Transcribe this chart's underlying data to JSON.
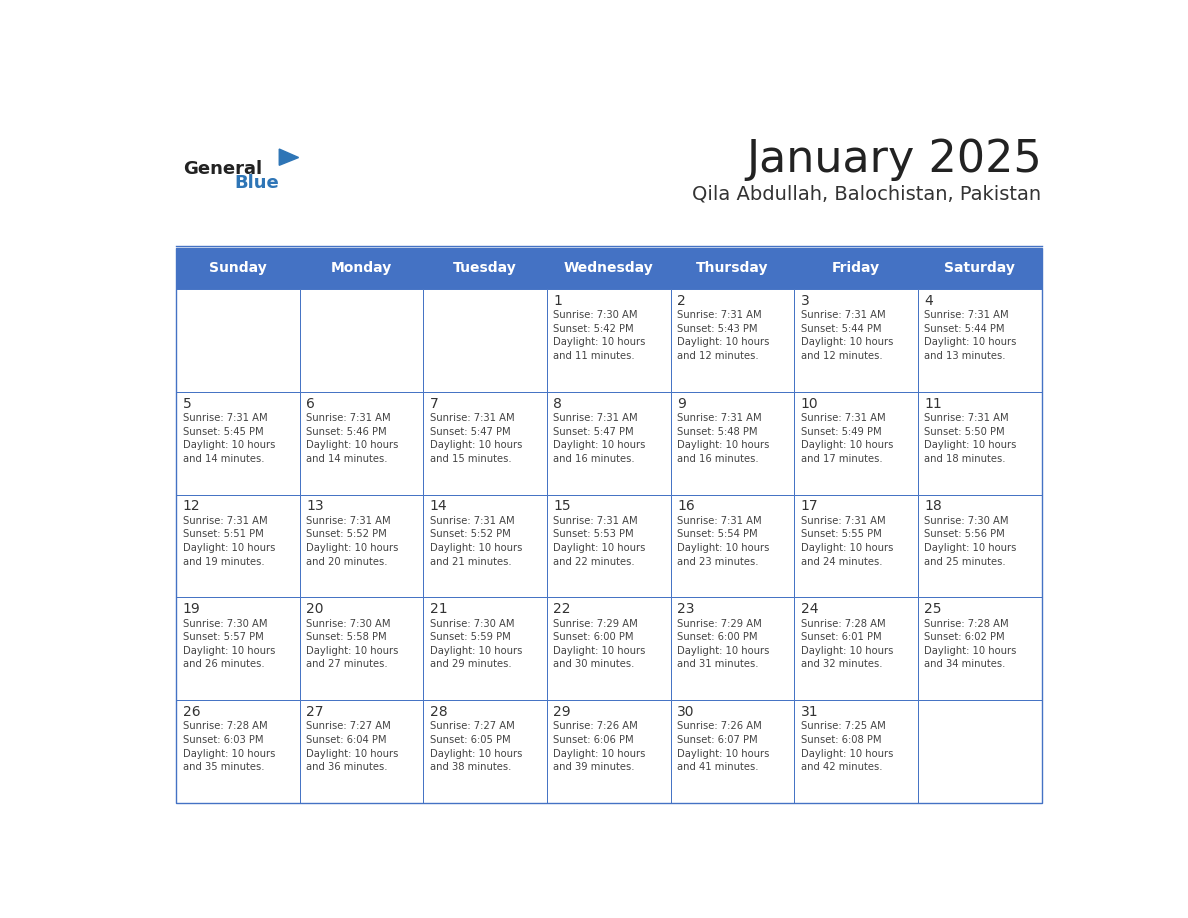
{
  "title": "January 2025",
  "subtitle": "Qila Abdullah, Balochistan, Pakistan",
  "header_bg_color": "#4472C4",
  "header_text_color": "#FFFFFF",
  "day_names": [
    "Sunday",
    "Monday",
    "Tuesday",
    "Wednesday",
    "Thursday",
    "Friday",
    "Saturday"
  ],
  "grid_line_color": "#4472C4",
  "cell_bg_color": "#FFFFFF",
  "day_number_color": "#333333",
  "day_text_color": "#444444",
  "title_color": "#222222",
  "subtitle_color": "#333333",
  "logo_general_color": "#222222",
  "logo_blue_color": "#2E75B6",
  "weeks": [
    {
      "days": [
        {
          "date": null,
          "info": null
        },
        {
          "date": null,
          "info": null
        },
        {
          "date": null,
          "info": null
        },
        {
          "date": 1,
          "info": "Sunrise: 7:30 AM\nSunset: 5:42 PM\nDaylight: 10 hours\nand 11 minutes."
        },
        {
          "date": 2,
          "info": "Sunrise: 7:31 AM\nSunset: 5:43 PM\nDaylight: 10 hours\nand 12 minutes."
        },
        {
          "date": 3,
          "info": "Sunrise: 7:31 AM\nSunset: 5:44 PM\nDaylight: 10 hours\nand 12 minutes."
        },
        {
          "date": 4,
          "info": "Sunrise: 7:31 AM\nSunset: 5:44 PM\nDaylight: 10 hours\nand 13 minutes."
        }
      ]
    },
    {
      "days": [
        {
          "date": 5,
          "info": "Sunrise: 7:31 AM\nSunset: 5:45 PM\nDaylight: 10 hours\nand 14 minutes."
        },
        {
          "date": 6,
          "info": "Sunrise: 7:31 AM\nSunset: 5:46 PM\nDaylight: 10 hours\nand 14 minutes."
        },
        {
          "date": 7,
          "info": "Sunrise: 7:31 AM\nSunset: 5:47 PM\nDaylight: 10 hours\nand 15 minutes."
        },
        {
          "date": 8,
          "info": "Sunrise: 7:31 AM\nSunset: 5:47 PM\nDaylight: 10 hours\nand 16 minutes."
        },
        {
          "date": 9,
          "info": "Sunrise: 7:31 AM\nSunset: 5:48 PM\nDaylight: 10 hours\nand 16 minutes."
        },
        {
          "date": 10,
          "info": "Sunrise: 7:31 AM\nSunset: 5:49 PM\nDaylight: 10 hours\nand 17 minutes."
        },
        {
          "date": 11,
          "info": "Sunrise: 7:31 AM\nSunset: 5:50 PM\nDaylight: 10 hours\nand 18 minutes."
        }
      ]
    },
    {
      "days": [
        {
          "date": 12,
          "info": "Sunrise: 7:31 AM\nSunset: 5:51 PM\nDaylight: 10 hours\nand 19 minutes."
        },
        {
          "date": 13,
          "info": "Sunrise: 7:31 AM\nSunset: 5:52 PM\nDaylight: 10 hours\nand 20 minutes."
        },
        {
          "date": 14,
          "info": "Sunrise: 7:31 AM\nSunset: 5:52 PM\nDaylight: 10 hours\nand 21 minutes."
        },
        {
          "date": 15,
          "info": "Sunrise: 7:31 AM\nSunset: 5:53 PM\nDaylight: 10 hours\nand 22 minutes."
        },
        {
          "date": 16,
          "info": "Sunrise: 7:31 AM\nSunset: 5:54 PM\nDaylight: 10 hours\nand 23 minutes."
        },
        {
          "date": 17,
          "info": "Sunrise: 7:31 AM\nSunset: 5:55 PM\nDaylight: 10 hours\nand 24 minutes."
        },
        {
          "date": 18,
          "info": "Sunrise: 7:30 AM\nSunset: 5:56 PM\nDaylight: 10 hours\nand 25 minutes."
        }
      ]
    },
    {
      "days": [
        {
          "date": 19,
          "info": "Sunrise: 7:30 AM\nSunset: 5:57 PM\nDaylight: 10 hours\nand 26 minutes."
        },
        {
          "date": 20,
          "info": "Sunrise: 7:30 AM\nSunset: 5:58 PM\nDaylight: 10 hours\nand 27 minutes."
        },
        {
          "date": 21,
          "info": "Sunrise: 7:30 AM\nSunset: 5:59 PM\nDaylight: 10 hours\nand 29 minutes."
        },
        {
          "date": 22,
          "info": "Sunrise: 7:29 AM\nSunset: 6:00 PM\nDaylight: 10 hours\nand 30 minutes."
        },
        {
          "date": 23,
          "info": "Sunrise: 7:29 AM\nSunset: 6:00 PM\nDaylight: 10 hours\nand 31 minutes."
        },
        {
          "date": 24,
          "info": "Sunrise: 7:28 AM\nSunset: 6:01 PM\nDaylight: 10 hours\nand 32 minutes."
        },
        {
          "date": 25,
          "info": "Sunrise: 7:28 AM\nSunset: 6:02 PM\nDaylight: 10 hours\nand 34 minutes."
        }
      ]
    },
    {
      "days": [
        {
          "date": 26,
          "info": "Sunrise: 7:28 AM\nSunset: 6:03 PM\nDaylight: 10 hours\nand 35 minutes."
        },
        {
          "date": 27,
          "info": "Sunrise: 7:27 AM\nSunset: 6:04 PM\nDaylight: 10 hours\nand 36 minutes."
        },
        {
          "date": 28,
          "info": "Sunrise: 7:27 AM\nSunset: 6:05 PM\nDaylight: 10 hours\nand 38 minutes."
        },
        {
          "date": 29,
          "info": "Sunrise: 7:26 AM\nSunset: 6:06 PM\nDaylight: 10 hours\nand 39 minutes."
        },
        {
          "date": 30,
          "info": "Sunrise: 7:26 AM\nSunset: 6:07 PM\nDaylight: 10 hours\nand 41 minutes."
        },
        {
          "date": 31,
          "info": "Sunrise: 7:25 AM\nSunset: 6:08 PM\nDaylight: 10 hours\nand 42 minutes."
        },
        {
          "date": null,
          "info": null
        }
      ]
    }
  ]
}
